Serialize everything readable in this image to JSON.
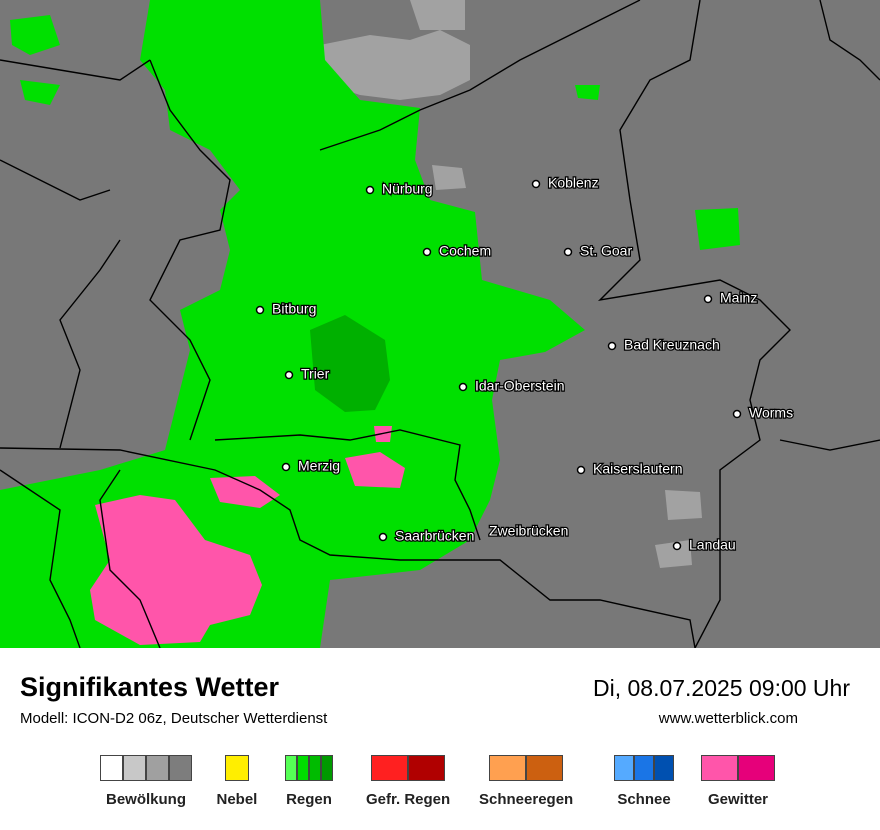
{
  "map": {
    "cities": [
      "Nürburg",
      "Koblenz",
      "Cochem",
      "St. Goar",
      "Mainz",
      "Bitburg",
      "Bad Kreuznach",
      "Trier",
      "Idar-Oberstein",
      "Worms",
      "Merzig",
      "Kaiserslautern",
      "Saarbrücken",
      "Zweibrücken",
      "Landau"
    ]
  },
  "footer": {
    "title": "Signifikantes Wetter",
    "model": "Modell: ICON-D2 06z, Deutscher Wetterdienst",
    "datetime": "Di, 08.07.2025 09:00 Uhr",
    "website": "www.wetterblick.com"
  },
  "legend": [
    {
      "label": "Bewölkung",
      "colors": [
        "#ffffff",
        "#c8c8c8",
        "#a0a0a0",
        "#7d7d7d"
      ]
    },
    {
      "label": "Nebel",
      "colors": [
        "#ffee00"
      ]
    },
    {
      "label": "Regen",
      "colors": [
        "#55ff55",
        "#00dd00",
        "#00bb00",
        "#009a00"
      ]
    },
    {
      "label": "Gefr. Regen",
      "colors": [
        "#ff2020",
        "#b00000"
      ]
    },
    {
      "label": "Schneeregen",
      "colors": [
        "#ffa050",
        "#cc6010"
      ]
    },
    {
      "label": "Schnee",
      "colors": [
        "#55aaff",
        "#1a75e6",
        "#0050b0"
      ]
    },
    {
      "label": "Gewitter",
      "colors": [
        "#ff55aa",
        "#e6007a"
      ]
    }
  ]
}
